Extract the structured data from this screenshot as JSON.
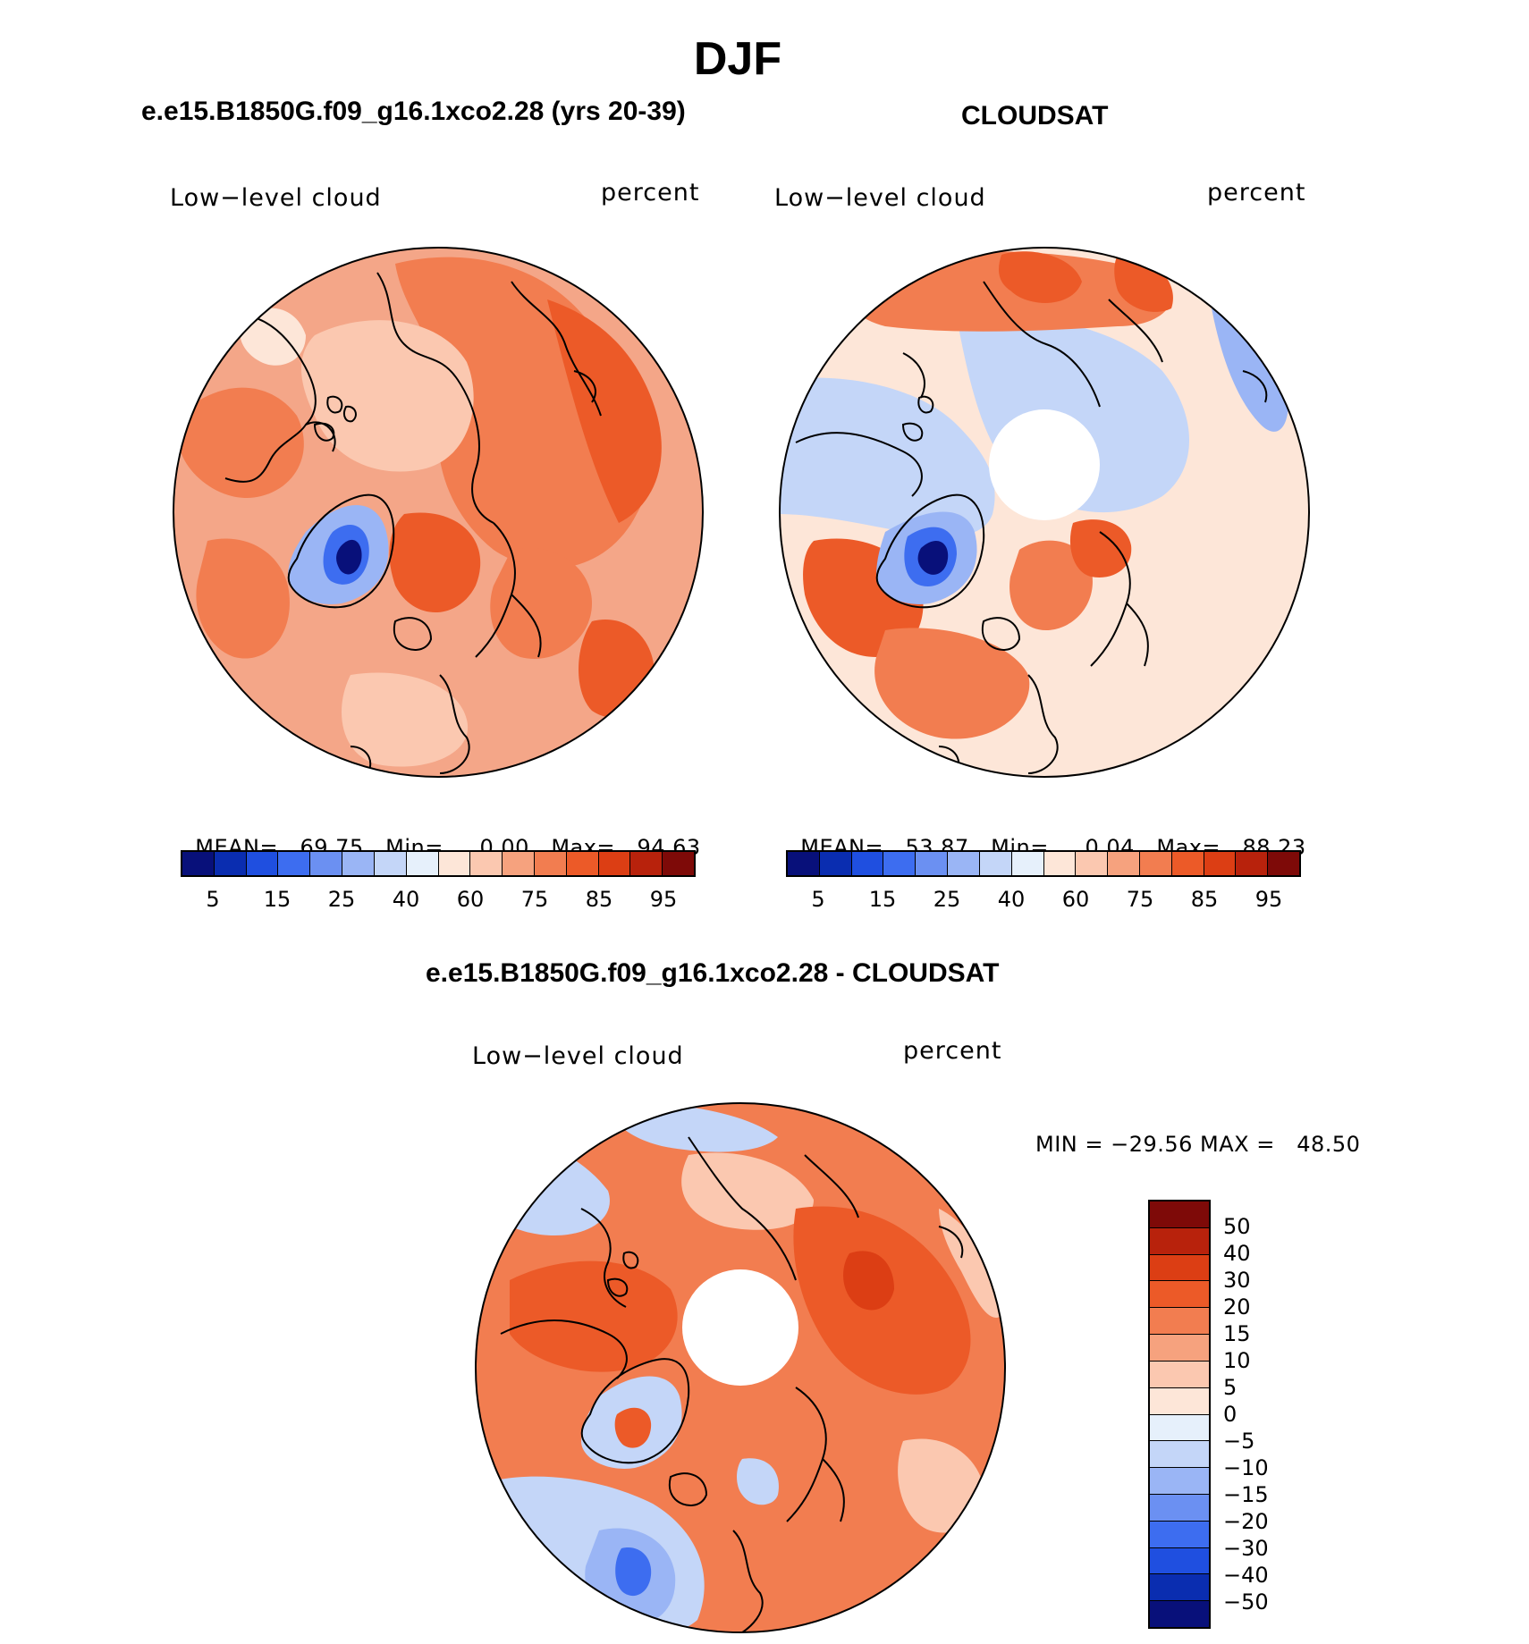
{
  "page_title": "DJF",
  "panels": [
    {
      "heading": "e.e15.B1850G.f09_g16.1xco2.28 (yrs 20-39)",
      "left_label": "Low−level cloud",
      "right_label": "percent",
      "mean_label": "MEAN=",
      "mean_value": "69.75",
      "min_label": "Min=",
      "min_value": "0.00",
      "max_label": "Max=",
      "max_value": "94.63"
    },
    {
      "heading": "CLOUDSAT",
      "left_label": "Low−level cloud",
      "right_label": "percent",
      "mean_label": "MEAN=",
      "mean_value": "53.87",
      "min_label": "Min=",
      "min_value": "0.04",
      "max_label": "Max=",
      "max_value": "88.23"
    }
  ],
  "colorbar_abs": {
    "colors": [
      "#08107a",
      "#0a2db0",
      "#1f4fe0",
      "#3d6df0",
      "#6b90f2",
      "#9ab5f5",
      "#c4d6f8",
      "#e6f0fb",
      "#fde6d8",
      "#fbc8b0",
      "#f6a27e",
      "#f27d50",
      "#ec5a28",
      "#dc3e14",
      "#b8220c",
      "#7e0a08"
    ],
    "ticks": [
      "5",
      "15",
      "25",
      "40",
      "60",
      "75",
      "85",
      "95"
    ]
  },
  "diff_panel": {
    "heading": "e.e15.B1850G.f09_g16.1xco2.28 - CLOUDSAT",
    "left_label": "Low−level cloud",
    "right_label": "percent",
    "minmax_text": "MIN = −29.56 MAX =   48.50"
  },
  "colorbar_diff": {
    "colors": [
      "#7e0a08",
      "#b8220c",
      "#dc3e14",
      "#ec5a28",
      "#f27d50",
      "#f6a27e",
      "#fbc8b0",
      "#fde6d8",
      "#e6f0fb",
      "#c4d6f8",
      "#9ab5f5",
      "#6b90f2",
      "#3d6df0",
      "#1f4fe0",
      "#0a2db0",
      "#08107a"
    ],
    "ticks": [
      "50",
      "40",
      "30",
      "20",
      "15",
      "10",
      "5",
      "0",
      "−5",
      "−10",
      "−15",
      "−20",
      "−30",
      "−40",
      "−50"
    ]
  },
  "map_colors": {
    "ocean_base": "#f4a688",
    "warm1": "#f27d50",
    "warm2": "#ec5a28",
    "warm3": "#dc3e14",
    "light": "#fbc8b0",
    "pale": "#fde6d8",
    "cool1": "#c4d6f8",
    "cool2": "#9ab5f5",
    "cool3": "#3d6df0",
    "deep": "#08107a",
    "land_line": "#000000",
    "hole": "#ffffff"
  }
}
